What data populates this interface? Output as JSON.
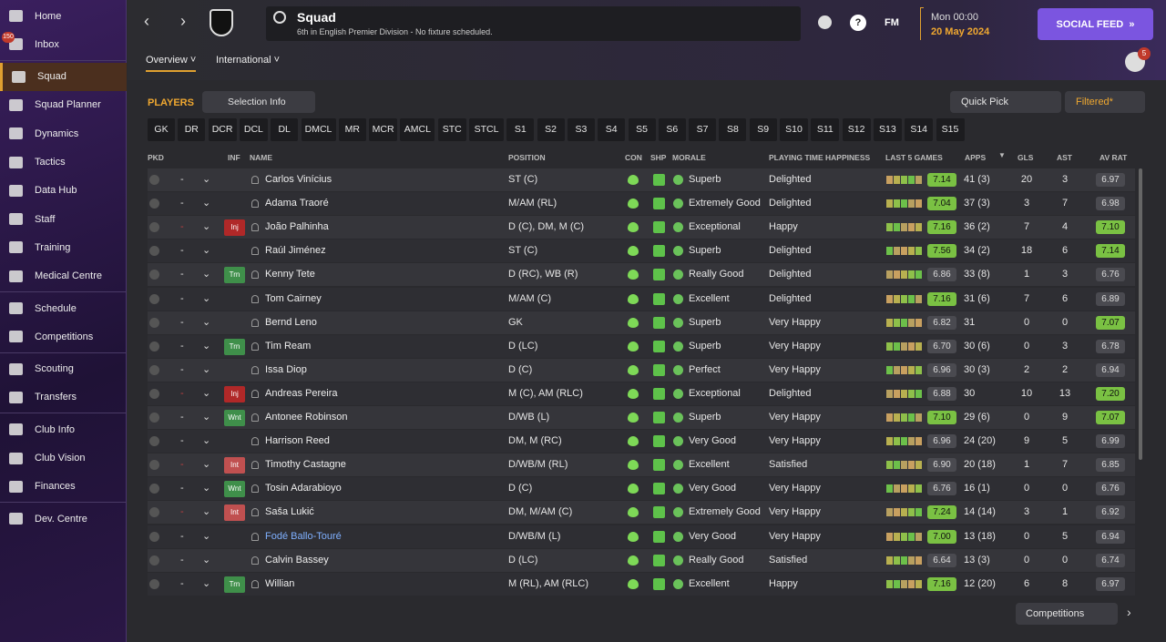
{
  "sidebar": {
    "inbox_badge": "150",
    "groups": [
      [
        "Home",
        "Inbox"
      ],
      [
        "Squad",
        "Squad Planner",
        "Dynamics",
        "Tactics",
        "Data Hub",
        "Staff",
        "Training",
        "Medical Centre"
      ],
      [
        "Schedule",
        "Competitions"
      ],
      [
        "Scouting",
        "Transfers"
      ],
      [
        "Club Info",
        "Club Vision",
        "Finances"
      ],
      [
        "Dev. Centre"
      ]
    ]
  },
  "header": {
    "title": "Squad",
    "subtitle": "6th in English Premier Division - No fixture scheduled.",
    "fm": "FM",
    "time": "Mon 00:00",
    "date": "20 May 2024",
    "social_feed": "SOCIAL FEED",
    "notifications": "5"
  },
  "tabs": [
    "Overview",
    "International"
  ],
  "toolbar": {
    "players": "PLAYERS",
    "selection_info": "Selection Info",
    "quick_pick": "Quick Pick",
    "filtered": "Filtered*"
  },
  "position_filters": [
    "GK",
    "DR",
    "DCR",
    "DCL",
    "DL",
    "DMCL",
    "MR",
    "MCR",
    "AMCL",
    "STC",
    "STCL",
    "S1",
    "S2",
    "S3",
    "S4",
    "S5",
    "S6",
    "S7",
    "S8",
    "S9",
    "S10",
    "S11",
    "S12",
    "S13",
    "S14",
    "S15"
  ],
  "table": {
    "columns": [
      "PKD",
      "INF",
      "NAME",
      "POSITION",
      "CON",
      "SHP",
      "MORALE",
      "PLAYING TIME HAPPINESS",
      "LAST 5 GAMES",
      "APPS",
      "GLS",
      "AST",
      "AV RAT"
    ],
    "rows": [
      {
        "pkd": "-",
        "name": "Carlos Vinícius",
        "position": "ST (C)",
        "morale": "Superb",
        "happiness": "Delighted",
        "form": "7.14",
        "apps": "41 (3)",
        "gls": 20,
        "ast": 3,
        "av_rat": "6.97"
      },
      {
        "pkd": "-",
        "name": "Adama Traoré",
        "position": "M/AM (RL)",
        "morale": "Extremely Good",
        "happiness": "Delighted",
        "form": "7.04",
        "apps": "37 (3)",
        "gls": 3,
        "ast": 7,
        "av_rat": "6.98"
      },
      {
        "pkd": "-",
        "inf": "Inj",
        "name": "João Palhinha",
        "position": "D (C), DM, M (C)",
        "morale": "Exceptional",
        "happiness": "Happy",
        "form": "7.16",
        "apps": "36 (2)",
        "gls": 7,
        "ast": 4,
        "av_rat": "7.10"
      },
      {
        "pkd": "-",
        "name": "Raúl Jiménez",
        "position": "ST (C)",
        "morale": "Superb",
        "happiness": "Delighted",
        "form": "7.56",
        "apps": "34 (2)",
        "gls": 18,
        "ast": 6,
        "av_rat": "7.14"
      },
      {
        "pkd": "-",
        "inf": "Trn",
        "name": "Kenny Tete",
        "position": "D (RC), WB (R)",
        "morale": "Really Good",
        "happiness": "Delighted",
        "form": "6.86",
        "apps": "33 (8)",
        "gls": 1,
        "ast": 3,
        "av_rat": "6.76"
      },
      {
        "pkd": "-",
        "name": "Tom Cairney",
        "position": "M/AM (C)",
        "morale": "Excellent",
        "happiness": "Delighted",
        "form": "7.16",
        "apps": "31 (6)",
        "gls": 7,
        "ast": 6,
        "av_rat": "6.89"
      },
      {
        "pkd": "-",
        "name": "Bernd Leno",
        "position": "GK",
        "morale": "Superb",
        "happiness": "Very Happy",
        "form": "6.82",
        "apps": "31",
        "gls": 0,
        "ast": 0,
        "av_rat": "7.07"
      },
      {
        "pkd": "-",
        "inf": "Trn",
        "name": "Tim Ream",
        "position": "D (LC)",
        "morale": "Superb",
        "happiness": "Very Happy",
        "form": "6.70",
        "apps": "30 (6)",
        "gls": 0,
        "ast": 3,
        "av_rat": "6.78"
      },
      {
        "pkd": "-",
        "name": "Issa Diop",
        "position": "D (C)",
        "morale": "Perfect",
        "happiness": "Very Happy",
        "form": "6.96",
        "apps": "30 (3)",
        "gls": 2,
        "ast": 2,
        "av_rat": "6.94"
      },
      {
        "pkd": "-",
        "inf": "Inj",
        "name": "Andreas Pereira",
        "position": "M (C), AM (RLC)",
        "morale": "Exceptional",
        "happiness": "Delighted",
        "form": "6.88",
        "apps": "30",
        "gls": 10,
        "ast": 13,
        "av_rat": "7.20"
      },
      {
        "pkd": "-",
        "inf": "Wnt",
        "name": "Antonee Robinson",
        "position": "D/WB (L)",
        "morale": "Superb",
        "happiness": "Very Happy",
        "form": "7.10",
        "apps": "29 (6)",
        "gls": 0,
        "ast": 9,
        "av_rat": "7.07"
      },
      {
        "pkd": "-",
        "name": "Harrison Reed",
        "position": "DM, M (RC)",
        "morale": "Very Good",
        "happiness": "Very Happy",
        "form": "6.96",
        "apps": "24 (20)",
        "gls": 9,
        "ast": 5,
        "av_rat": "6.99"
      },
      {
        "pkd": "-",
        "inf": "Int",
        "name": "Timothy Castagne",
        "position": "D/WB/M (RL)",
        "morale": "Excellent",
        "happiness": "Satisfied",
        "form": "6.90",
        "apps": "20 (18)",
        "gls": 1,
        "ast": 7,
        "av_rat": "6.85"
      },
      {
        "pkd": "-",
        "inf": "Wnt",
        "name": "Tosin Adarabioyo",
        "position": "D (C)",
        "morale": "Very Good",
        "happiness": "Very Happy",
        "form": "6.76",
        "apps": "16 (1)",
        "gls": 0,
        "ast": 0,
        "av_rat": "6.76"
      },
      {
        "pkd": "-",
        "inf": "Int",
        "name": "Saša Lukić",
        "position": "DM, M/AM (C)",
        "morale": "Extremely Good",
        "happiness": "Very Happy",
        "form": "7.24",
        "apps": "14 (14)",
        "gls": 3,
        "ast": 1,
        "av_rat": "6.92"
      },
      {
        "pkd": "-",
        "name": "Fodé Ballo-Touré",
        "position": "D/WB/M (L)",
        "morale": "Very Good",
        "happiness": "Very Happy",
        "form": "7.00",
        "apps": "13 (18)",
        "gls": 0,
        "ast": 5,
        "av_rat": "6.94"
      },
      {
        "pkd": "-",
        "name": "Calvin Bassey",
        "position": "D (LC)",
        "morale": "Really Good",
        "happiness": "Satisfied",
        "form": "6.64",
        "apps": "13 (3)",
        "gls": 0,
        "ast": 0,
        "av_rat": "6.74"
      },
      {
        "pkd": "-",
        "inf": "Trn",
        "name": "Willian",
        "position": "M (RL), AM (RLC)",
        "morale": "Excellent",
        "happiness": "Happy",
        "form": "7.16",
        "apps": "12 (20)",
        "gls": 6,
        "ast": 8,
        "av_rat": "6.97"
      }
    ]
  },
  "footer": {
    "competitions": "Competitions"
  }
}
